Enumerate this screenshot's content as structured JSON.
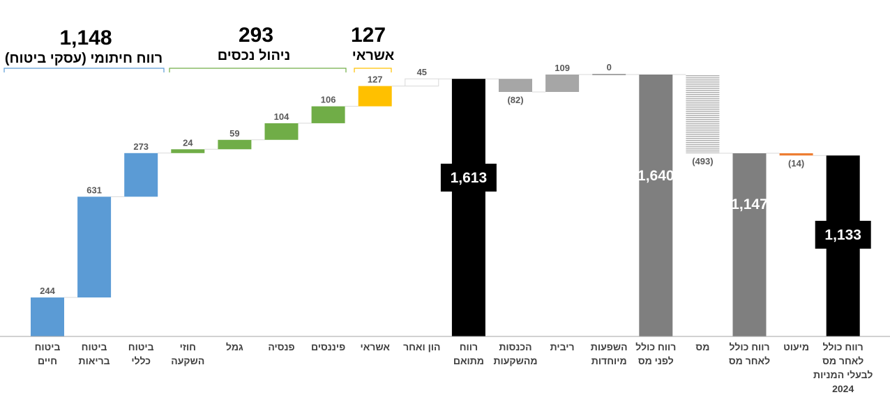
{
  "chart_data": {
    "type": "waterfall",
    "ylim": [
      0,
      1700
    ],
    "groups": [
      {
        "total": "1,148",
        "label": "רווח חיתומי (עסקי ביטוח)",
        "color": "#5b9bd5"
      },
      {
        "total": "293",
        "label": "ניהול נכסים",
        "color": "#70ad47"
      },
      {
        "total": "127",
        "label": "אשראי",
        "color": "#ffc000"
      }
    ],
    "steps": [
      {
        "category": [
          "ביטוח",
          "חיים"
        ],
        "value": 244,
        "label": "244",
        "kind": "delta",
        "color": "#5b9bd5"
      },
      {
        "category": [
          "ביטוח",
          "בריאות"
        ],
        "value": 631,
        "label": "631",
        "kind": "delta",
        "color": "#5b9bd5"
      },
      {
        "category": [
          "ביטוח",
          "כללי"
        ],
        "value": 273,
        "label": "273",
        "kind": "delta",
        "color": "#5b9bd5"
      },
      {
        "category": [
          "חוזי",
          "השקעה"
        ],
        "value": 24,
        "label": "24",
        "kind": "delta",
        "color": "#70ad47"
      },
      {
        "category": [
          "גמל"
        ],
        "value": 59,
        "label": "59",
        "kind": "delta",
        "color": "#70ad47"
      },
      {
        "category": [
          "פנסיה"
        ],
        "value": 104,
        "label": "104",
        "kind": "delta",
        "color": "#70ad47"
      },
      {
        "category": [
          "פיננסים"
        ],
        "value": 106,
        "label": "106",
        "kind": "delta",
        "color": "#70ad47"
      },
      {
        "category": [
          "אשראי"
        ],
        "value": 127,
        "label": "127",
        "kind": "delta",
        "color": "#ffc000"
      },
      {
        "category": [
          "הון ואחר"
        ],
        "value": 45,
        "label": "45",
        "kind": "delta",
        "color": "#ffffff"
      },
      {
        "category": [
          "רווח",
          "מתואם"
        ],
        "value": 1613,
        "label": "1,613",
        "kind": "total",
        "color": "#000000"
      },
      {
        "category": [
          "הכנסות",
          "מהשקעות"
        ],
        "value": -82,
        "label": "(82)",
        "kind": "delta",
        "color": "#a6a6a6"
      },
      {
        "category": [
          "ריבית"
        ],
        "value": 109,
        "label": "109",
        "kind": "delta",
        "color": "#a6a6a6"
      },
      {
        "category": [
          "השפעות",
          "מיוחדות"
        ],
        "value": 0,
        "label": "0",
        "kind": "delta",
        "color": "#a6a6a6"
      },
      {
        "category": [
          "רווח כולל",
          "לפני מס"
        ],
        "value": 1640,
        "label": "1,640",
        "kind": "total",
        "color": "#7f7f7f"
      },
      {
        "category": [
          "מס"
        ],
        "value": -493,
        "label": "(493)",
        "kind": "delta",
        "color": "#bfbfbf"
      },
      {
        "category": [
          "רווח כולל",
          "לאחר מס"
        ],
        "value": 1147,
        "label": "1,147",
        "kind": "total",
        "color": "#7f7f7f"
      },
      {
        "category": [
          "מיעוט"
        ],
        "value": -14,
        "label": "(14)",
        "kind": "delta",
        "color": "#ed7d31"
      },
      {
        "category": [
          "רווח כולל",
          "לאחר מס",
          "לבעלי המניות",
          "2024"
        ],
        "value": 1133,
        "label": "1,133",
        "kind": "total",
        "color": "#000000"
      }
    ]
  }
}
